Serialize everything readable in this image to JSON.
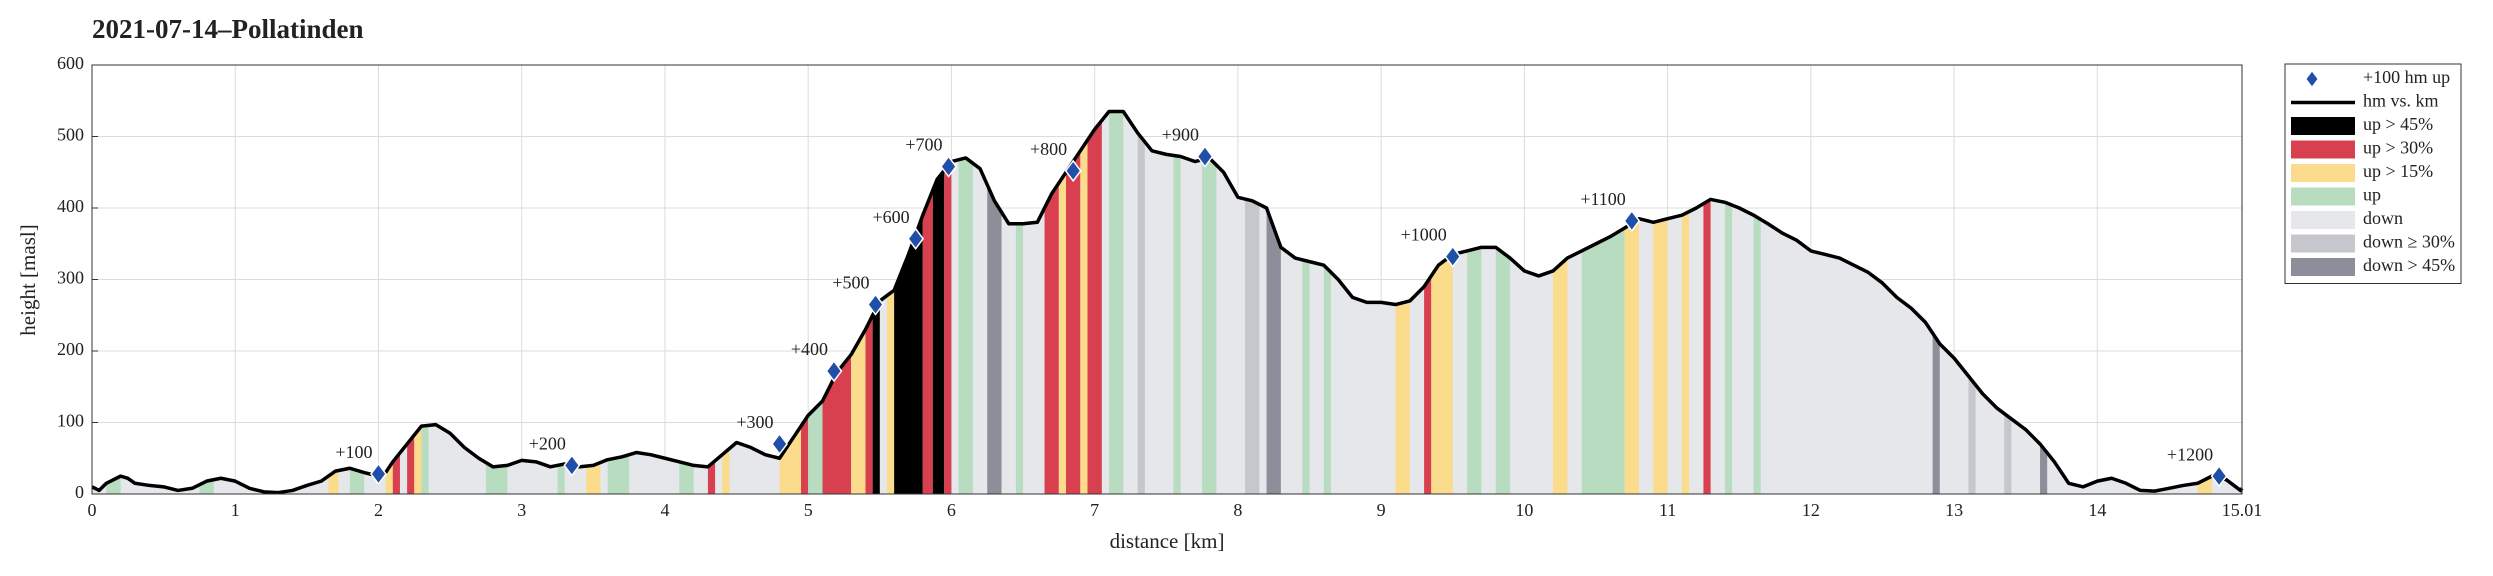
{
  "chart_data": {
    "type": "elevation-profile",
    "title": "2021-07-14–Pollatinden",
    "xlabel": "distance [km]",
    "ylabel": "height [masl]",
    "xlim": [
      0,
      15.01
    ],
    "ylim": [
      0,
      600
    ],
    "xticks": [
      0,
      1,
      2,
      3,
      4,
      5,
      6,
      7,
      8,
      9,
      10,
      11,
      12,
      13,
      14,
      15.01
    ],
    "yticks": [
      0,
      100,
      200,
      300,
      400,
      500,
      600
    ],
    "grid": true,
    "line_name": "hm vs. km",
    "line_color": "#000000",
    "area_color": "#e6e7ea",
    "x": [
      0,
      0.05,
      0.1,
      0.2,
      0.25,
      0.3,
      0.4,
      0.5,
      0.6,
      0.7,
      0.8,
      0.9,
      1.0,
      1.1,
      1.2,
      1.3,
      1.4,
      1.5,
      1.6,
      1.7,
      1.8,
      1.9,
      2.0,
      2.05,
      2.1,
      2.2,
      2.3,
      2.4,
      2.5,
      2.6,
      2.7,
      2.8,
      2.9,
      3.0,
      3.1,
      3.2,
      3.3,
      3.4,
      3.5,
      3.6,
      3.7,
      3.8,
      3.9,
      4.0,
      4.1,
      4.2,
      4.3,
      4.4,
      4.5,
      4.6,
      4.7,
      4.8,
      4.9,
      5.0,
      5.1,
      5.2,
      5.3,
      5.4,
      5.5,
      5.6,
      5.7,
      5.8,
      5.9,
      6.0,
      6.1,
      6.2,
      6.3,
      6.4,
      6.5,
      6.6,
      6.7,
      6.8,
      6.9,
      7.0,
      7.1,
      7.2,
      7.3,
      7.4,
      7.5,
      7.6,
      7.7,
      7.8,
      7.9,
      8.0,
      8.1,
      8.2,
      8.3,
      8.4,
      8.5,
      8.6,
      8.7,
      8.8,
      8.9,
      9.0,
      9.1,
      9.2,
      9.3,
      9.4,
      9.5,
      9.6,
      9.7,
      9.8,
      9.9,
      10.0,
      10.1,
      10.2,
      10.3,
      10.4,
      10.5,
      10.6,
      10.7,
      10.8,
      10.9,
      11.0,
      11.1,
      11.2,
      11.3,
      11.4,
      11.5,
      11.6,
      11.7,
      11.8,
      11.9,
      12.0,
      12.1,
      12.2,
      12.3,
      12.4,
      12.5,
      12.6,
      12.7,
      12.8,
      12.9,
      13.0,
      13.1,
      13.2,
      13.3,
      13.4,
      13.5,
      13.6,
      13.7,
      13.8,
      13.9,
      14.0,
      14.1,
      14.2,
      14.3,
      14.4,
      14.5,
      14.6,
      14.7,
      14.8,
      14.9,
      15.0,
      15.01
    ],
    "values": [
      10,
      5,
      15,
      25,
      22,
      15,
      12,
      10,
      5,
      8,
      18,
      22,
      18,
      8,
      3,
      2,
      5,
      12,
      18,
      32,
      36,
      30,
      25,
      30,
      45,
      70,
      95,
      97,
      85,
      65,
      50,
      38,
      40,
      47,
      45,
      38,
      42,
      38,
      40,
      48,
      52,
      58,
      55,
      50,
      45,
      40,
      38,
      55,
      72,
      65,
      55,
      50,
      80,
      110,
      130,
      170,
      195,
      230,
      270,
      285,
      335,
      390,
      440,
      465,
      470,
      455,
      410,
      378,
      378,
      380,
      420,
      450,
      480,
      510,
      535,
      535,
      505,
      480,
      475,
      472,
      465,
      470,
      450,
      415,
      410,
      400,
      345,
      330,
      325,
      320,
      300,
      275,
      268,
      268,
      265,
      270,
      290,
      320,
      335,
      340,
      345,
      345,
      330,
      312,
      305,
      312,
      330,
      340,
      350,
      360,
      372,
      385,
      380,
      385,
      390,
      400,
      412,
      408,
      400,
      390,
      378,
      365,
      355,
      340,
      335,
      330,
      320,
      310,
      295,
      275,
      260,
      240,
      210,
      190,
      165,
      140,
      120,
      105,
      90,
      70,
      45,
      15,
      10,
      18,
      22,
      15,
      5,
      4,
      8,
      12,
      15,
      25,
      20,
      5,
      8
    ],
    "markers": {
      "name": "+100 hm up",
      "color": "#1f4fa8",
      "x": [
        2.0,
        3.35,
        4.8,
        5.18,
        5.47,
        5.75,
        5.98,
        6.85,
        7.77,
        9.5,
        10.75,
        14.85
      ],
      "values": [
        28,
        40,
        70,
        172,
        265,
        357,
        458,
        452,
        472,
        332,
        382,
        25
      ],
      "labels": [
        "+100",
        "+200",
        "+300",
        "+400",
        "+500",
        "+600",
        "+700",
        "+800",
        "+900",
        "+1000",
        "+1100",
        "+1200"
      ]
    },
    "band_kinds": [
      {
        "name": "up > 45%",
        "color": "#000000"
      },
      {
        "name": "up > 30%",
        "color": "#d9404f"
      },
      {
        "name": "up > 15%",
        "color": "#fadc8c"
      },
      {
        "name": "up",
        "color": "#b8dcc0"
      },
      {
        "name": "down",
        "color": "#e6e7ea"
      },
      {
        "name": "down ≥ 30%",
        "color": "#c6c7cd"
      },
      {
        "name": "down > 45%",
        "color": "#8c8f99"
      }
    ],
    "bands": [
      {
        "start": 0.1,
        "end": 0.2,
        "kind": 3
      },
      {
        "start": 0.75,
        "end": 0.85,
        "kind": 3
      },
      {
        "start": 1.65,
        "end": 1.72,
        "kind": 2
      },
      {
        "start": 1.8,
        "end": 1.9,
        "kind": 3
      },
      {
        "start": 2.05,
        "end": 2.1,
        "kind": 2
      },
      {
        "start": 2.1,
        "end": 2.15,
        "kind": 1
      },
      {
        "start": 2.2,
        "end": 2.25,
        "kind": 1
      },
      {
        "start": 2.25,
        "end": 2.3,
        "kind": 2
      },
      {
        "start": 2.3,
        "end": 2.35,
        "kind": 3
      },
      {
        "start": 2.75,
        "end": 2.9,
        "kind": 3
      },
      {
        "start": 3.25,
        "end": 3.3,
        "kind": 3
      },
      {
        "start": 3.45,
        "end": 3.55,
        "kind": 2
      },
      {
        "start": 3.6,
        "end": 3.75,
        "kind": 3
      },
      {
        "start": 4.1,
        "end": 4.2,
        "kind": 3
      },
      {
        "start": 4.3,
        "end": 4.35,
        "kind": 1
      },
      {
        "start": 4.4,
        "end": 4.45,
        "kind": 2
      },
      {
        "start": 4.8,
        "end": 4.95,
        "kind": 2
      },
      {
        "start": 4.95,
        "end": 5.0,
        "kind": 1
      },
      {
        "start": 5.0,
        "end": 5.1,
        "kind": 3
      },
      {
        "start": 5.1,
        "end": 5.3,
        "kind": 1
      },
      {
        "start": 5.3,
        "end": 5.4,
        "kind": 2
      },
      {
        "start": 5.4,
        "end": 5.45,
        "kind": 1
      },
      {
        "start": 5.45,
        "end": 5.5,
        "kind": 0
      },
      {
        "start": 5.55,
        "end": 5.6,
        "kind": 2
      },
      {
        "start": 5.6,
        "end": 5.8,
        "kind": 0
      },
      {
        "start": 5.8,
        "end": 5.87,
        "kind": 1
      },
      {
        "start": 5.87,
        "end": 5.95,
        "kind": 0
      },
      {
        "start": 5.95,
        "end": 6.0,
        "kind": 1
      },
      {
        "start": 6.05,
        "end": 6.15,
        "kind": 3
      },
      {
        "start": 6.25,
        "end": 6.35,
        "kind": 6
      },
      {
        "start": 6.45,
        "end": 6.5,
        "kind": 3
      },
      {
        "start": 6.65,
        "end": 6.75,
        "kind": 1
      },
      {
        "start": 6.75,
        "end": 6.8,
        "kind": 2
      },
      {
        "start": 6.8,
        "end": 6.9,
        "kind": 1
      },
      {
        "start": 6.9,
        "end": 6.95,
        "kind": 2
      },
      {
        "start": 6.95,
        "end": 7.05,
        "kind": 1
      },
      {
        "start": 7.1,
        "end": 7.2,
        "kind": 3
      },
      {
        "start": 7.3,
        "end": 7.35,
        "kind": 5
      },
      {
        "start": 7.55,
        "end": 7.6,
        "kind": 3
      },
      {
        "start": 7.75,
        "end": 7.85,
        "kind": 3
      },
      {
        "start": 8.05,
        "end": 8.15,
        "kind": 5
      },
      {
        "start": 8.2,
        "end": 8.3,
        "kind": 6
      },
      {
        "start": 8.45,
        "end": 8.5,
        "kind": 3
      },
      {
        "start": 8.6,
        "end": 8.65,
        "kind": 3
      },
      {
        "start": 9.1,
        "end": 9.2,
        "kind": 2
      },
      {
        "start": 9.3,
        "end": 9.35,
        "kind": 1
      },
      {
        "start": 9.35,
        "end": 9.5,
        "kind": 2
      },
      {
        "start": 9.6,
        "end": 9.7,
        "kind": 3
      },
      {
        "start": 9.8,
        "end": 9.9,
        "kind": 3
      },
      {
        "start": 10.2,
        "end": 10.3,
        "kind": 2
      },
      {
        "start": 10.4,
        "end": 10.7,
        "kind": 3
      },
      {
        "start": 10.7,
        "end": 10.8,
        "kind": 2
      },
      {
        "start": 10.9,
        "end": 11.0,
        "kind": 2
      },
      {
        "start": 11.1,
        "end": 11.15,
        "kind": 2
      },
      {
        "start": 11.25,
        "end": 11.3,
        "kind": 1
      },
      {
        "start": 11.4,
        "end": 11.45,
        "kind": 3
      },
      {
        "start": 11.6,
        "end": 11.65,
        "kind": 3
      },
      {
        "start": 12.85,
        "end": 12.9,
        "kind": 6
      },
      {
        "start": 13.1,
        "end": 13.15,
        "kind": 5
      },
      {
        "start": 13.35,
        "end": 13.4,
        "kind": 5
      },
      {
        "start": 13.6,
        "end": 13.65,
        "kind": 6
      },
      {
        "start": 14.7,
        "end": 14.8,
        "kind": 2
      },
      {
        "start": 15.0,
        "end": 15.01,
        "kind": 6
      }
    ]
  }
}
